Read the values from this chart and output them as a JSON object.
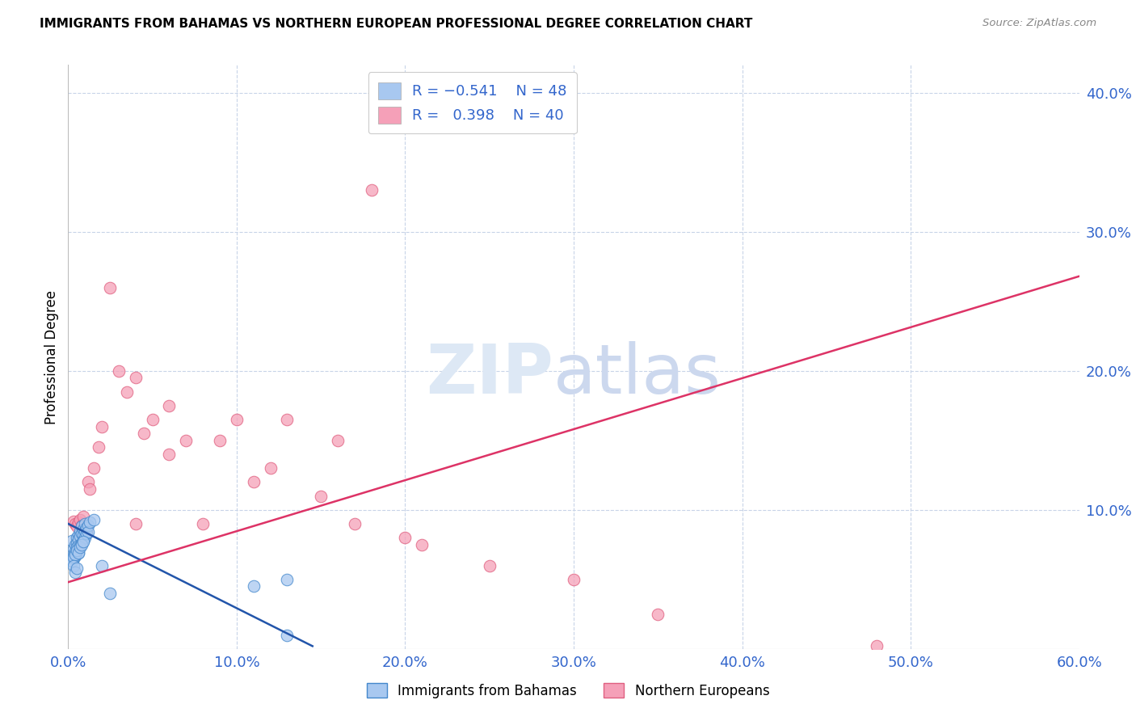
{
  "title": "IMMIGRANTS FROM BAHAMAS VS NORTHERN EUROPEAN PROFESSIONAL DEGREE CORRELATION CHART",
  "source": "Source: ZipAtlas.com",
  "ylabel": "Professional Degree",
  "xlim": [
    0.0,
    0.6
  ],
  "ylim": [
    0.0,
    0.42
  ],
  "xticks": [
    0.0,
    0.1,
    0.2,
    0.3,
    0.4,
    0.5,
    0.6
  ],
  "xtick_labels": [
    "0.0%",
    "10.0%",
    "20.0%",
    "30.0%",
    "40.0%",
    "50.0%",
    "60.0%"
  ],
  "yticks_right": [
    0.1,
    0.2,
    0.3,
    0.4
  ],
  "ytick_labels_right": [
    "10.0%",
    "20.0%",
    "30.0%",
    "40.0%"
  ],
  "color_blue": "#a8c8f0",
  "color_pink": "#f5a0b8",
  "color_blue_edge": "#4488cc",
  "color_pink_edge": "#e06080",
  "color_line_blue": "#2255aa",
  "color_line_pink": "#dd3366",
  "color_grid": "#c8d4e8",
  "color_text_blue": "#3366cc",
  "background_color": "#ffffff",
  "blue_line_x": [
    0.0,
    0.145
  ],
  "blue_line_y": [
    0.09,
    0.002
  ],
  "pink_line_x": [
    0.0,
    0.6
  ],
  "pink_line_y": [
    0.048,
    0.268
  ],
  "blue_scatter_x": [
    0.002,
    0.003,
    0.003,
    0.003,
    0.004,
    0.004,
    0.004,
    0.005,
    0.005,
    0.005,
    0.006,
    0.006,
    0.006,
    0.006,
    0.007,
    0.007,
    0.007,
    0.008,
    0.008,
    0.008,
    0.009,
    0.009,
    0.009,
    0.01,
    0.01,
    0.01,
    0.011,
    0.011,
    0.012,
    0.012,
    0.013,
    0.015,
    0.002,
    0.003,
    0.004,
    0.005,
    0.006,
    0.007,
    0.008,
    0.009,
    0.003,
    0.004,
    0.005,
    0.025,
    0.11,
    0.13,
    0.13,
    0.02
  ],
  "blue_scatter_y": [
    0.078,
    0.072,
    0.068,
    0.065,
    0.075,
    0.07,
    0.067,
    0.08,
    0.076,
    0.073,
    0.082,
    0.079,
    0.074,
    0.069,
    0.085,
    0.081,
    0.074,
    0.088,
    0.083,
    0.076,
    0.086,
    0.082,
    0.078,
    0.09,
    0.085,
    0.08,
    0.087,
    0.083,
    0.089,
    0.084,
    0.091,
    0.093,
    0.063,
    0.066,
    0.068,
    0.071,
    0.069,
    0.073,
    0.075,
    0.077,
    0.06,
    0.055,
    0.058,
    0.04,
    0.045,
    0.01,
    0.05,
    0.06
  ],
  "pink_scatter_x": [
    0.003,
    0.004,
    0.005,
    0.006,
    0.007,
    0.008,
    0.009,
    0.01,
    0.011,
    0.012,
    0.013,
    0.015,
    0.018,
    0.02,
    0.025,
    0.03,
    0.035,
    0.04,
    0.045,
    0.05,
    0.06,
    0.07,
    0.09,
    0.1,
    0.11,
    0.12,
    0.13,
    0.15,
    0.16,
    0.17,
    0.18,
    0.2,
    0.21,
    0.25,
    0.3,
    0.35,
    0.48,
    0.06,
    0.08,
    0.04
  ],
  "pink_scatter_y": [
    0.092,
    0.09,
    0.088,
    0.091,
    0.093,
    0.089,
    0.095,
    0.087,
    0.085,
    0.12,
    0.115,
    0.13,
    0.145,
    0.16,
    0.26,
    0.2,
    0.185,
    0.195,
    0.155,
    0.165,
    0.14,
    0.15,
    0.15,
    0.165,
    0.12,
    0.13,
    0.165,
    0.11,
    0.15,
    0.09,
    0.33,
    0.08,
    0.075,
    0.06,
    0.05,
    0.025,
    0.002,
    0.175,
    0.09,
    0.09
  ]
}
